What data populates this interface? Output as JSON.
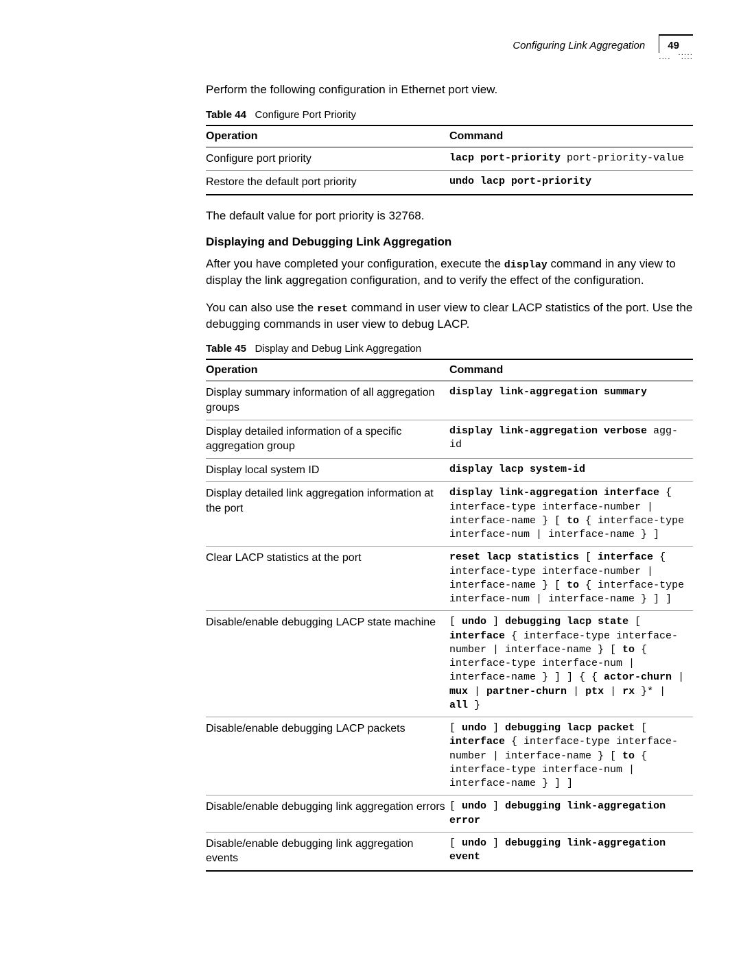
{
  "header": {
    "section_title": "Configuring Link Aggregation",
    "page_number": "49"
  },
  "intro_text": "Perform the following configuration in Ethernet port view.",
  "table44": {
    "caption_label": "Table 44",
    "caption_text": "Configure Port Priority",
    "col_operation": "Operation",
    "col_command": "Command",
    "rows": [
      {
        "op": "Configure port priority",
        "cmd_parts": [
          {
            "t": "lacp port-priority",
            "b": true
          },
          {
            "t": " port-priority-value",
            "b": false
          }
        ]
      },
      {
        "op": "Restore the default port priority",
        "cmd_parts": [
          {
            "t": "undo lacp port-priority",
            "b": true
          }
        ]
      }
    ]
  },
  "default_text": "The default value for port priority is 32768.",
  "section_heading": "Displaying and Debugging Link Aggregation",
  "para1_parts": [
    {
      "t": "After you have completed your configuration, execute the ",
      "m": false
    },
    {
      "t": "display",
      "m": true
    },
    {
      "t": " command in any view to display the link aggregation configuration, and to verify the effect of the configuration.",
      "m": false
    }
  ],
  "para2_parts": [
    {
      "t": "You can also use the ",
      "m": false
    },
    {
      "t": "reset",
      "m": true
    },
    {
      "t": " command in user view to clear LACP statistics of the port. Use the debugging commands in user view to debug LACP.",
      "m": false
    }
  ],
  "table45": {
    "caption_label": "Table 45",
    "caption_text": "Display and Debug Link Aggregation",
    "col_operation": "Operation",
    "col_command": "Command",
    "rows": [
      {
        "op": "Display summary information of all aggregation groups",
        "cmd_parts": [
          {
            "t": "display link-aggregation summary",
            "b": true
          }
        ]
      },
      {
        "op": "Display detailed information of a specific aggregation group",
        "cmd_parts": [
          {
            "t": "display link-aggregation verbose",
            "b": true
          },
          {
            "t": " agg-id",
            "b": false
          }
        ]
      },
      {
        "op": "Display local system ID",
        "cmd_parts": [
          {
            "t": "display lacp system-id",
            "b": true
          }
        ]
      },
      {
        "op": "Display detailed link aggregation information at the port",
        "cmd_parts": [
          {
            "t": "display link-aggregation interface",
            "b": true
          },
          {
            "t": " { interface-type interface-number | interface-name } [ ",
            "b": false
          },
          {
            "t": "to",
            "b": true
          },
          {
            "t": " { interface-type interface-num | interface-name } ]",
            "b": false
          }
        ]
      },
      {
        "op": "Clear LACP statistics at the port",
        "cmd_parts": [
          {
            "t": "reset lacp statistics",
            "b": true
          },
          {
            "t": " [ ",
            "b": false
          },
          {
            "t": "interface",
            "b": true
          },
          {
            "t": " { interface-type interface-number | interface-name } [ ",
            "b": false
          },
          {
            "t": "to",
            "b": true
          },
          {
            "t": " { interface-type interface-num | interface-name } ] ]",
            "b": false
          }
        ]
      },
      {
        "op": "Disable/enable debugging LACP state machine",
        "cmd_parts": [
          {
            "t": "[ ",
            "b": false
          },
          {
            "t": "undo",
            "b": true
          },
          {
            "t": " ] ",
            "b": false
          },
          {
            "t": "debugging lacp state",
            "b": true
          },
          {
            "t": " [ ",
            "b": false
          },
          {
            "t": "interface",
            "b": true
          },
          {
            "t": " { interface-type interface-number | interface-name } [ ",
            "b": false
          },
          {
            "t": "to",
            "b": true
          },
          {
            "t": " { interface-type interface-num | interface-name } ] ] { { ",
            "b": false
          },
          {
            "t": "actor-churn",
            "b": true
          },
          {
            "t": " | ",
            "b": false
          },
          {
            "t": "mux",
            "b": true
          },
          {
            "t": " | ",
            "b": false
          },
          {
            "t": "partner-churn",
            "b": true
          },
          {
            "t": " | ",
            "b": false
          },
          {
            "t": "ptx",
            "b": true
          },
          {
            "t": " | ",
            "b": false
          },
          {
            "t": "rx",
            "b": true
          },
          {
            "t": " }* | ",
            "b": false
          },
          {
            "t": "all",
            "b": true
          },
          {
            "t": " }",
            "b": false
          }
        ]
      },
      {
        "op": "Disable/enable debugging LACP packets",
        "cmd_parts": [
          {
            "t": "[ ",
            "b": false
          },
          {
            "t": "undo",
            "b": true
          },
          {
            "t": " ] ",
            "b": false
          },
          {
            "t": "debugging lacp packet",
            "b": true
          },
          {
            "t": " [ ",
            "b": false
          },
          {
            "t": "interface",
            "b": true
          },
          {
            "t": " { interface-type interface-number | interface-name } [ ",
            "b": false
          },
          {
            "t": "to",
            "b": true
          },
          {
            "t": " { interface-type interface-num | interface-name } ] ]",
            "b": false
          }
        ]
      },
      {
        "op": "Disable/enable debugging link aggregation errors",
        "cmd_parts": [
          {
            "t": "[ ",
            "b": false
          },
          {
            "t": "undo",
            "b": true
          },
          {
            "t": " ] ",
            "b": false
          },
          {
            "t": "debugging link-aggregation error",
            "b": true
          }
        ]
      },
      {
        "op": "Disable/enable debugging link aggregation events",
        "cmd_parts": [
          {
            "t": "[ ",
            "b": false
          },
          {
            "t": "undo",
            "b": true
          },
          {
            "t": " ] ",
            "b": false
          },
          {
            "t": "debugging link-aggregation event",
            "b": true
          }
        ]
      }
    ]
  }
}
